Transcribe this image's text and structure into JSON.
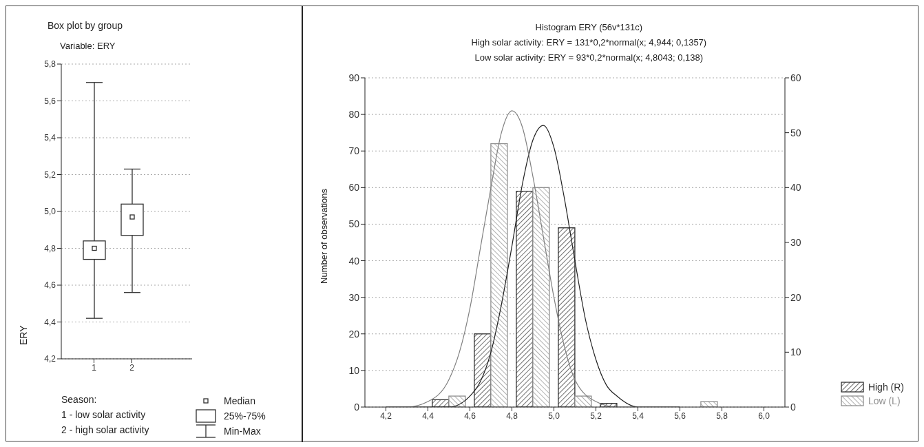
{
  "chart_data": [
    {
      "type": "box",
      "title": "Box plot by group",
      "subtitle": "Variable: ERY",
      "ylabel": "ERY",
      "categories": [
        "1",
        "2"
      ],
      "color": "#303030",
      "boxes": [
        {
          "low": 4.42,
          "q1": 4.74,
          "median": 4.8,
          "q3": 4.84,
          "high": 5.7
        },
        {
          "low": 4.56,
          "q1": 4.87,
          "median": 4.97,
          "q3": 5.04,
          "high": 5.23
        }
      ],
      "ylim": [
        4.2,
        5.8
      ],
      "yticks": [
        {
          "value": 4.2,
          "label": "4,2"
        },
        {
          "value": 4.4,
          "label": "4,4"
        },
        {
          "value": 4.6,
          "label": "4,6"
        },
        {
          "value": 4.8,
          "label": "4,8"
        },
        {
          "value": 5.0,
          "label": "5,0"
        },
        {
          "value": 5.2,
          "label": "5,2"
        },
        {
          "value": 5.4,
          "label": "5,4"
        },
        {
          "value": 5.6,
          "label": "5,6"
        },
        {
          "value": 5.8,
          "label": "5,8"
        }
      ],
      "grid": "y",
      "legend_title": "Season:",
      "annotations": [
        "1 - low solar activity",
        "2 - high solar activity",
        "Median",
        "25%-75%",
        "Min-Max"
      ]
    },
    {
      "type": "histogram",
      "title": "Histogram ERY (56v*131c)",
      "subtitle": "High solar activity: ERY = 131*0,2*normal(x; 4,944; 0,1357)",
      "annotations": [
        "Low solar activity: ERY = 93*0,2*normal(x; 4,8043; 0,138)"
      ],
      "ylabel": "Number of observations",
      "bins": [
        4.2,
        4.4,
        4.6,
        4.8,
        5.0,
        5.2,
        5.4,
        5.6,
        5.8,
        6.0
      ],
      "series": [
        {
          "name": "High (R)",
          "color": "#303030",
          "values": [
            0,
            2,
            20,
            59,
            49,
            1,
            0,
            0,
            0
          ]
        },
        {
          "name": "Low (L)",
          "color": "#909090",
          "axis": "y2",
          "values": [
            0,
            2,
            48,
            40,
            2,
            0,
            0,
            1,
            0
          ]
        },
        {
          "type": "line",
          "color": "#202020",
          "x": [
            4.2,
            4.3,
            4.4,
            4.5,
            4.6,
            4.65,
            4.7,
            4.75,
            4.8,
            4.85,
            4.9,
            4.95,
            5.0,
            5.05,
            5.1,
            5.15,
            5.2,
            5.25,
            5.3,
            5.4,
            5.5,
            5.6
          ],
          "values": [
            0,
            0,
            0,
            0,
            3,
            7,
            15,
            28,
            44,
            61,
            73,
            77,
            71,
            57,
            40,
            24,
            13,
            6,
            3,
            0,
            0,
            0
          ]
        },
        {
          "type": "line",
          "color": "#808080",
          "axis": "y2",
          "x": [
            4.2,
            4.3,
            4.4,
            4.5,
            4.55,
            4.6,
            4.65,
            4.7,
            4.75,
            4.8,
            4.85,
            4.9,
            4.95,
            5.0,
            5.05,
            5.1,
            5.2,
            5.3,
            5.4
          ],
          "values": [
            0,
            0,
            1,
            5,
            10,
            18,
            29,
            40,
            50,
            54,
            51,
            42,
            31,
            20,
            11,
            5,
            1,
            0,
            0
          ]
        }
      ],
      "xlim": [
        4.1,
        6.1
      ],
      "xticks": [
        {
          "value": 4.2,
          "label": "4,2"
        },
        {
          "value": 4.4,
          "label": "4,4"
        },
        {
          "value": 4.6,
          "label": "4,6"
        },
        {
          "value": 4.8,
          "label": "4,8"
        },
        {
          "value": 5.0,
          "label": "5,0"
        },
        {
          "value": 5.2,
          "label": "5,2"
        },
        {
          "value": 5.4,
          "label": "5,4"
        },
        {
          "value": 5.6,
          "label": "5,6"
        },
        {
          "value": 5.8,
          "label": "5,8"
        },
        {
          "value": 6.0,
          "label": "6,0"
        }
      ],
      "ylim": [
        0,
        90
      ],
      "yticks": [
        0,
        10,
        20,
        30,
        40,
        50,
        60,
        70,
        80,
        90
      ],
      "y2lim": [
        0,
        60
      ],
      "y2ticks": [
        0,
        10,
        20,
        30,
        40,
        50,
        60
      ],
      "grid": "y",
      "legend": "bottom right"
    }
  ]
}
